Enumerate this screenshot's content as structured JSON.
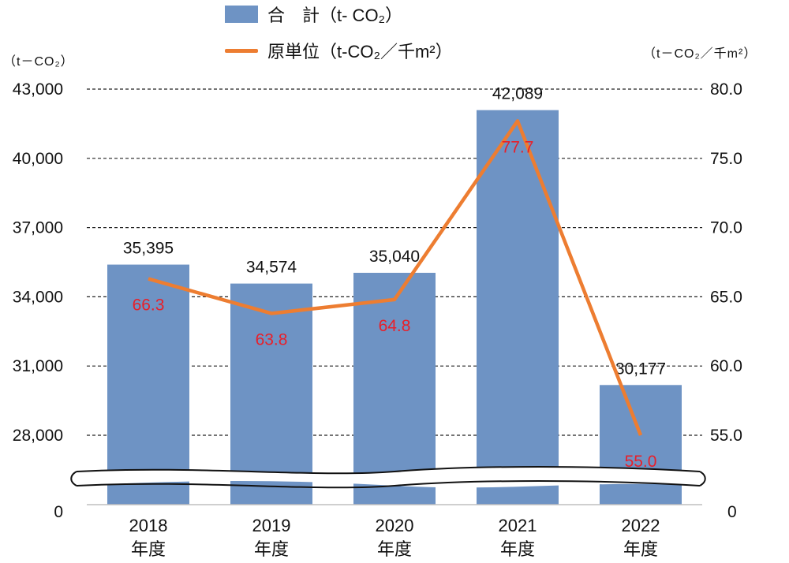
{
  "legend": {
    "bar_label": "合　計（t- CO₂）",
    "line_label": "原単位（t-CO₂／千m²）"
  },
  "axes": {
    "left_unit": "（t－CO₂）",
    "right_unit": "（t－CO₂／千m²）"
  },
  "chart_data": {
    "type": "bar",
    "categories": [
      "2018\n年度",
      "2019\n年度",
      "2020\n年度",
      "2021\n年度",
      "2022\n年度"
    ],
    "series": [
      {
        "name": "合　計（t- CO₂）",
        "type": "bar",
        "axis": "left",
        "values": [
          35395,
          34574,
          35040,
          42089,
          30177
        ],
        "value_labels": [
          "35,395",
          "34,574",
          "35,040",
          "42,089",
          "30,177"
        ],
        "color": "#6e93c4"
      },
      {
        "name": "原単位（t-CO₂／千m²）",
        "type": "line",
        "axis": "right",
        "values": [
          66.3,
          63.8,
          64.8,
          77.7,
          55.0
        ],
        "value_labels": [
          "66.3",
          "63.8",
          "64.8",
          "77.7",
          "55.0"
        ],
        "color": "#ed7d31",
        "label_color": "#e8202a"
      }
    ],
    "left_axis": {
      "ticks": [
        28000,
        31000,
        34000,
        37000,
        40000,
        43000
      ],
      "tick_labels": [
        "28,000",
        "31,000",
        "34,000",
        "37,000",
        "40,000",
        "43,000"
      ],
      "ylim": [
        28000,
        43000
      ],
      "break_bottom_label": "0"
    },
    "right_axis": {
      "ticks": [
        55,
        60,
        65,
        70,
        75,
        80
      ],
      "tick_labels": [
        "55.0",
        "60.0",
        "65.0",
        "70.0",
        "75.0",
        "80.0"
      ],
      "ylim": [
        55,
        80
      ],
      "break_bottom_label": "0"
    },
    "axis_break": true,
    "grid": "dashed-horizontal",
    "legend_position": "top-center"
  }
}
